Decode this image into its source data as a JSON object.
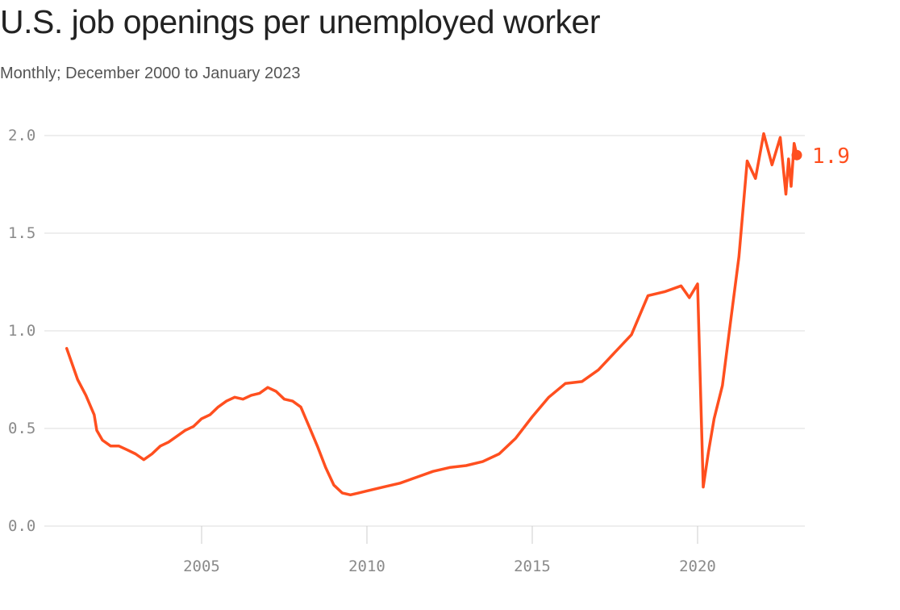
{
  "title": "U.S. job openings per unemployed worker",
  "subtitle": "Monthly; December 2000 to January 2023",
  "colors": {
    "line": "#ff4f1f",
    "grid": "#dddddd",
    "tick": "#8a8a8a"
  },
  "chart_data": {
    "type": "line",
    "title": "U.S. job openings per unemployed worker",
    "subtitle": "Monthly; December 2000 to January 2023",
    "xlabel": "",
    "ylabel": "",
    "ylim": [
      0,
      2.0
    ],
    "xlim": [
      2000.9,
      2023.2
    ],
    "grid": true,
    "yticks": [
      0.0,
      0.5,
      1.0,
      1.5,
      2.0
    ],
    "ytick_labels": [
      "0.0",
      "0.5",
      "1.0",
      "1.5",
      "2.0"
    ],
    "xticks": [
      2005,
      2010,
      2015,
      2020
    ],
    "xtick_labels": [
      "2005",
      "2010",
      "2015",
      "2020"
    ],
    "end_label": "1.9",
    "x": [
      2000.92,
      2001.25,
      2001.5,
      2001.75,
      2001.83,
      2002.0,
      2002.25,
      2002.5,
      2002.75,
      2003.0,
      2003.25,
      2003.5,
      2003.75,
      2004.0,
      2004.25,
      2004.5,
      2004.75,
      2005.0,
      2005.25,
      2005.5,
      2005.75,
      2006.0,
      2006.25,
      2006.5,
      2006.75,
      2007.0,
      2007.25,
      2007.5,
      2007.75,
      2008.0,
      2008.25,
      2008.5,
      2008.75,
      2009.0,
      2009.25,
      2009.5,
      2009.75,
      2010.0,
      2010.5,
      2011.0,
      2011.5,
      2012.0,
      2012.5,
      2013.0,
      2013.5,
      2014.0,
      2014.5,
      2015.0,
      2015.5,
      2016.0,
      2016.5,
      2017.0,
      2017.5,
      2018.0,
      2018.5,
      2019.0,
      2019.5,
      2019.75,
      2020.0,
      2020.17,
      2020.33,
      2020.5,
      2020.75,
      2021.0,
      2021.25,
      2021.5,
      2021.75,
      2022.0,
      2022.25,
      2022.5,
      2022.67,
      2022.75,
      2022.83,
      2022.92,
      2023.0
    ],
    "series": [
      {
        "values": [
          0.91,
          0.75,
          0.67,
          0.57,
          0.49,
          0.44,
          0.41,
          0.41,
          0.39,
          0.37,
          0.34,
          0.37,
          0.41,
          0.43,
          0.46,
          0.49,
          0.51,
          0.55,
          0.57,
          0.61,
          0.64,
          0.66,
          0.65,
          0.67,
          0.68,
          0.71,
          0.69,
          0.65,
          0.64,
          0.61,
          0.51,
          0.41,
          0.3,
          0.21,
          0.17,
          0.16,
          0.17,
          0.18,
          0.2,
          0.22,
          0.25,
          0.28,
          0.3,
          0.31,
          0.33,
          0.37,
          0.45,
          0.56,
          0.66,
          0.73,
          0.74,
          0.8,
          0.89,
          0.98,
          1.18,
          1.2,
          1.23,
          1.17,
          1.24,
          0.2,
          0.38,
          0.55,
          0.72,
          1.05,
          1.38,
          1.87,
          1.78,
          2.01,
          1.85,
          1.99,
          1.7,
          1.88,
          1.74,
          1.96,
          1.9
        ]
      }
    ]
  }
}
